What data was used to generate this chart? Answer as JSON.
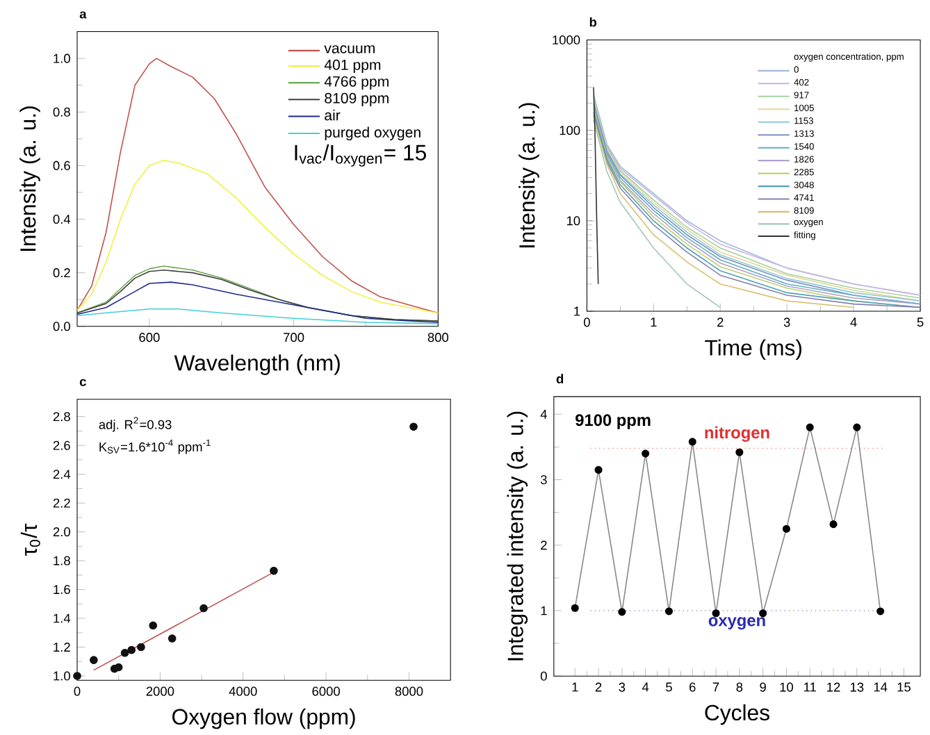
{
  "chart_data": [
    {
      "type": "line",
      "title": "a",
      "xlabel": "Wavelength (nm)",
      "ylabel": "Intensity (a. u.)",
      "xlim": [
        550,
        800
      ],
      "ylim": [
        0,
        1.1
      ],
      "xticks": [
        600,
        700,
        800
      ],
      "yticks": [
        {
          "value": 0,
          "label": "0.0"
        },
        {
          "value": 0.2,
          "label": "0.2"
        },
        {
          "value": 0.4,
          "label": "0.4"
        },
        {
          "value": 0.6,
          "label": "0.6"
        },
        {
          "value": 0.8,
          "label": "0.8"
        },
        {
          "value": 1.0,
          "label": "1.0"
        }
      ],
      "legend": "top right",
      "annotations": [
        "I$_{vac}$/I$_{oxygen}$= 15"
      ],
      "series": [
        {
          "name": "vacuum",
          "color": "#c0504d",
          "x": [
            550,
            560,
            570,
            580,
            590,
            600,
            605,
            615,
            630,
            645,
            660,
            680,
            700,
            720,
            740,
            760,
            780,
            800
          ],
          "values": [
            0.06,
            0.15,
            0.35,
            0.65,
            0.9,
            0.98,
            1.0,
            0.97,
            0.93,
            0.85,
            0.72,
            0.52,
            0.38,
            0.26,
            0.17,
            0.11,
            0.08,
            0.05
          ]
        },
        {
          "name": "401 ppm",
          "color": "#f0f040",
          "x": [
            550,
            560,
            570,
            580,
            590,
            600,
            610,
            620,
            640,
            660,
            680,
            700,
            720,
            740,
            760,
            780,
            800
          ],
          "values": [
            0.06,
            0.12,
            0.24,
            0.4,
            0.53,
            0.6,
            0.62,
            0.61,
            0.57,
            0.48,
            0.37,
            0.27,
            0.19,
            0.13,
            0.09,
            0.07,
            0.05
          ]
        },
        {
          "name": "4766 ppm",
          "color": "#6aa84f",
          "x": [
            550,
            570,
            580,
            590,
            600,
            610,
            630,
            650,
            670,
            690,
            710,
            740,
            770,
            800
          ],
          "values": [
            0.05,
            0.09,
            0.14,
            0.19,
            0.215,
            0.225,
            0.21,
            0.18,
            0.14,
            0.1,
            0.07,
            0.04,
            0.025,
            0.02
          ]
        },
        {
          "name": "8109 ppm",
          "color": "#404040",
          "x": [
            550,
            570,
            580,
            590,
            600,
            610,
            630,
            650,
            670,
            690,
            710,
            740,
            770,
            800
          ],
          "values": [
            0.05,
            0.085,
            0.13,
            0.18,
            0.205,
            0.21,
            0.2,
            0.175,
            0.135,
            0.1,
            0.07,
            0.04,
            0.025,
            0.02
          ]
        },
        {
          "name": "air",
          "color": "#1f2a8c",
          "x": [
            550,
            570,
            590,
            600,
            615,
            630,
            660,
            690,
            720,
            750,
            780,
            800
          ],
          "values": [
            0.045,
            0.07,
            0.13,
            0.16,
            0.165,
            0.155,
            0.12,
            0.09,
            0.06,
            0.03,
            0.02,
            0.015
          ]
        },
        {
          "name": "purged oxygen",
          "color": "#40d0d8",
          "x": [
            550,
            580,
            600,
            620,
            650,
            700,
            750,
            800
          ],
          "values": [
            0.04,
            0.055,
            0.065,
            0.065,
            0.05,
            0.03,
            0.015,
            0.01
          ]
        }
      ]
    },
    {
      "type": "line",
      "title": "b",
      "xlabel": "Time (ms)",
      "ylabel": "Intensity (a. u.)",
      "log": "y",
      "xlim": [
        0,
        5
      ],
      "ylim": [
        1,
        1000
      ],
      "xticks": [
        0,
        1,
        2,
        3,
        4,
        5
      ],
      "yticks": [
        1,
        10,
        100,
        1000
      ],
      "legend": "top right",
      "legend_title": "oxygen concentration, ppm",
      "series": [
        {
          "name": "0",
          "color": "#9fb8d8",
          "x": [
            0.1,
            0.3,
            0.5,
            1,
            1.5,
            2,
            3,
            4,
            5
          ],
          "values": [
            250,
            70,
            40,
            20,
            10,
            6,
            3,
            2,
            1.5
          ]
        },
        {
          "name": "402",
          "color": "#c8b4e0",
          "x": [
            0.1,
            0.3,
            0.5,
            1,
            1.5,
            2,
            3,
            4,
            5
          ],
          "values": [
            240,
            68,
            38,
            19,
            9.5,
            5.5,
            3,
            2,
            1.5
          ]
        },
        {
          "name": "917",
          "color": "#a8d0a0",
          "x": [
            0.1,
            0.3,
            0.5,
            1,
            1.5,
            2,
            3,
            4,
            5
          ],
          "values": [
            230,
            65,
            36,
            17,
            8.5,
            5,
            2.6,
            1.8,
            1.4
          ]
        },
        {
          "name": "1005",
          "color": "#e0d890",
          "x": [
            0.1,
            0.3,
            0.5,
            1,
            1.5,
            2,
            3,
            4,
            5
          ],
          "values": [
            220,
            62,
            35,
            16,
            8,
            4.5,
            2.5,
            1.7,
            1.3
          ]
        },
        {
          "name": "1153",
          "color": "#90c8d8",
          "x": [
            0.1,
            0.3,
            0.5,
            1,
            1.5,
            2,
            3,
            4,
            5
          ],
          "values": [
            210,
            60,
            33,
            15,
            7.5,
            4.2,
            2.3,
            1.6,
            1.3
          ]
        },
        {
          "name": "1313",
          "color": "#7890c8",
          "x": [
            0.1,
            0.3,
            0.5,
            1,
            1.5,
            2,
            3,
            4,
            5
          ],
          "values": [
            200,
            58,
            32,
            14,
            7,
            4,
            2.2,
            1.5,
            1.2
          ]
        },
        {
          "name": "1540",
          "color": "#60b0c0",
          "x": [
            0.1,
            0.3,
            0.5,
            1,
            1.5,
            2,
            3,
            4,
            5
          ],
          "values": [
            190,
            55,
            30,
            13,
            6.5,
            3.7,
            2,
            1.5,
            1.2
          ]
        },
        {
          "name": "1826",
          "color": "#b0a0c8",
          "x": [
            0.1,
            0.3,
            0.5,
            1,
            1.5,
            2,
            3,
            4,
            5
          ],
          "values": [
            180,
            52,
            28,
            12,
            6,
            3.4,
            1.9,
            1.4,
            1.2
          ]
        },
        {
          "name": "2285",
          "color": "#c0d070",
          "x": [
            0.1,
            0.3,
            0.5,
            1,
            1.5,
            2,
            3,
            4,
            5
          ],
          "values": [
            170,
            50,
            27,
            11,
            5.5,
            3.1,
            1.8,
            1.3,
            1.1
          ]
        },
        {
          "name": "3048",
          "color": "#50a0b8",
          "x": [
            0.1,
            0.3,
            0.5,
            1,
            1.5,
            2,
            3,
            4,
            5
          ],
          "values": [
            160,
            48,
            25,
            10,
            5,
            2.8,
            1.6,
            1.3,
            1.1
          ]
        },
        {
          "name": "4741",
          "color": "#8080b0",
          "x": [
            0.1,
            0.3,
            0.5,
            1,
            1.5,
            2,
            3,
            4,
            5
          ],
          "values": [
            150,
            45,
            23,
            9,
            4.5,
            2.5,
            1.5,
            1.2,
            1.1
          ]
        },
        {
          "name": "8109",
          "color": "#d8c070",
          "x": [
            0.1,
            0.3,
            0.5,
            1,
            1.5,
            2,
            3,
            4
          ],
          "values": [
            140,
            42,
            20,
            7,
            3.5,
            2,
            1.3,
            1.1
          ]
        },
        {
          "name": "oxygen",
          "color": "#a0c8b8",
          "x": [
            0.1,
            0.3,
            0.5,
            1,
            1.5,
            2
          ],
          "values": [
            130,
            35,
            16,
            5,
            2,
            1.1
          ]
        },
        {
          "name": "fitting",
          "color": "#303030",
          "x": [
            0.1,
            0.12,
            0.15,
            0.17
          ],
          "values": [
            300,
            100,
            8,
            2
          ]
        }
      ]
    },
    {
      "type": "scatter",
      "title": "c",
      "xlabel": "Oxygen flow (ppm)",
      "ylabel": "τ$_{0}$/τ",
      "xlim": [
        0,
        9000
      ],
      "ylim": [
        0.97,
        2.92
      ],
      "xticks": [
        0,
        2000,
        4000,
        6000,
        8000
      ],
      "yticks": [
        {
          "value": 1.0,
          "label": "1.0"
        },
        {
          "value": 1.2,
          "label": "1.2"
        },
        {
          "value": 1.4,
          "label": "1.4"
        },
        {
          "value": 1.6,
          "label": "1.6"
        },
        {
          "value": 1.8,
          "label": "1.8"
        },
        {
          "value": 2.0,
          "label": "2.0"
        },
        {
          "value": 2.2,
          "label": "2.2"
        },
        {
          "value": 2.4,
          "label": "2.4"
        },
        {
          "value": 2.6,
          "label": "2.6"
        },
        {
          "value": 2.8,
          "label": "2.8"
        }
      ],
      "marker": "circle",
      "annotations": [
        "adj. R$^{2}$=0.93",
        "K$_{SV}$=1.6*10$^{-4}$ ppm$^{-1}$"
      ],
      "series": [
        {
          "color": "#111111",
          "x": [
            0,
            400,
            900,
            1000,
            1150,
            1310,
            1540,
            1830,
            2290,
            3050,
            4740,
            8110
          ],
          "values": [
            1.0,
            1.11,
            1.05,
            1.06,
            1.16,
            1.18,
            1.2,
            1.35,
            1.26,
            1.47,
            1.73,
            2.73
          ]
        },
        {
          "type": "line",
          "marker": "none",
          "color": "#c0504d",
          "x": [
            400,
            4740
          ],
          "values": [
            1.04,
            1.72
          ]
        }
      ]
    },
    {
      "type": "line",
      "title": "d",
      "xlabel": "Cycles",
      "ylabel": "Integrated intensity (a. u.)",
      "xlim": [
        0.1,
        15.7
      ],
      "ylim": [
        0,
        4.27
      ],
      "xticks": [
        1,
        2,
        3,
        4,
        5,
        6,
        7,
        8,
        9,
        10,
        11,
        12,
        13,
        14,
        15
      ],
      "yticks": [
        0,
        1,
        2,
        3,
        4
      ],
      "marker": "circle",
      "ref_lines": [
        {
          "axis": "y",
          "value": 3.48,
          "label": "nitrogen",
          "color": "#e03030",
          "line_style": "dotted"
        },
        {
          "axis": "y",
          "value": 1.0,
          "label": "oxygen",
          "color": "#2a2ab0",
          "line_style": "dotted"
        }
      ],
      "annotations": [
        "**9100 ppm**"
      ],
      "series": [
        {
          "color": "#888888",
          "x": [
            1,
            2,
            3,
            4,
            5,
            6,
            7,
            8,
            9,
            10,
            11,
            12,
            13,
            14
          ],
          "values": [
            1.04,
            3.15,
            0.98,
            3.4,
            0.99,
            3.58,
            0.96,
            3.42,
            0.96,
            2.25,
            3.8,
            2.32,
            3.8,
            0.99
          ]
        }
      ]
    }
  ]
}
